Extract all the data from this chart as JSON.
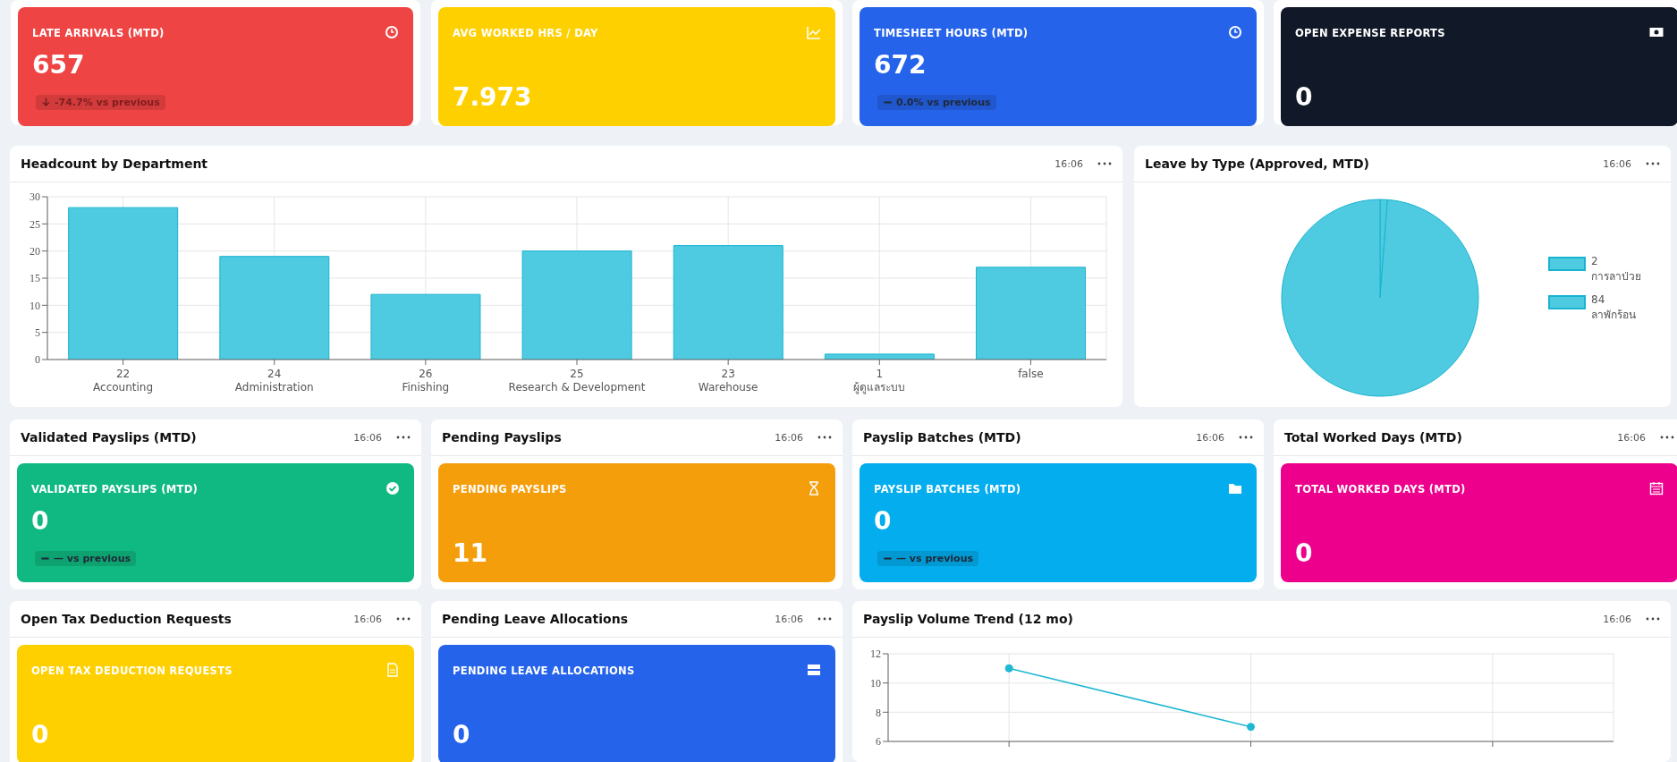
{
  "chart_data": [
    {
      "type": "other",
      "title": "LATE ARRIVALS (MTD)",
      "annotations": [
        "657",
        "-74.7% vs previous"
      ],
      "color": "#ef4444"
    },
    {
      "type": "other",
      "title": "AVG WORKED HRS / DAY",
      "annotations": [
        "7.973"
      ],
      "color": "#ffd000"
    },
    {
      "type": "other",
      "title": "TIMESHEET HOURS (MTD)",
      "annotations": [
        "672",
        "0.0% vs previous"
      ],
      "color": "#2563eb"
    },
    {
      "type": "other",
      "title": "OPEN EXPENSE REPORTS",
      "annotations": [
        "0"
      ],
      "color": "#111827"
    },
    {
      "type": "bar",
      "title": "Headcount by Department",
      "annotations": [
        "16:06"
      ],
      "categories": [
        "22\nAccounting",
        "24\nAdministration",
        "26\nFinishing",
        "25\nResearch & Development",
        "23\nWarehouse",
        "1\nผู้ดูแลระบบ",
        "false"
      ],
      "values": [
        28,
        19,
        12,
        20,
        21,
        1,
        17
      ],
      "color": "#4fcbe1",
      "ylim": [
        0,
        30
      ],
      "yticks": [
        0,
        5,
        10,
        15,
        20,
        25,
        30
      ],
      "grid": true
    },
    {
      "type": "pie",
      "title": "Leave by Type (Approved, MTD)",
      "annotations": [
        "16:06"
      ],
      "categories": [
        "2\nการลาป่วย",
        "84\nลาพักร้อน"
      ],
      "values": [
        1.2,
        98.8
      ],
      "colors": [
        "#4fcbe1",
        "#4fcbe1"
      ],
      "legend": "right"
    },
    {
      "type": "other",
      "title": "Validated Payslips (MTD)",
      "subtitle": "VALIDATED PAYSLIPS (MTD)",
      "annotations": [
        "16:06",
        "0",
        "— vs previous"
      ],
      "color": "#10b981"
    },
    {
      "type": "other",
      "title": "Pending Payslips",
      "subtitle": "PENDING PAYSLIPS",
      "annotations": [
        "16:06",
        "11"
      ],
      "color": "#f59e0b"
    },
    {
      "type": "other",
      "title": "Payslip Batches (MTD)",
      "subtitle": "PAYSLIP BATCHES (MTD)",
      "annotations": [
        "16:06",
        "0",
        "— vs previous"
      ],
      "color": "#03adee"
    },
    {
      "type": "other",
      "title": "Total Worked Days (MTD)",
      "subtitle": "TOTAL WORKED DAYS (MTD)",
      "annotations": [
        "16:06",
        "0"
      ],
      "color": "#ec008c"
    },
    {
      "type": "other",
      "title": "Open Tax Deduction Requests",
      "subtitle": "OPEN TAX DEDUCTION REQUESTS",
      "annotations": [
        "16:06",
        "0"
      ],
      "color": "#ffd000"
    },
    {
      "type": "other",
      "title": "Pending Leave Allocations",
      "subtitle": "PENDING LEAVE ALLOCATIONS",
      "annotations": [
        "16:06",
        "0"
      ],
      "color": "#2563eb"
    },
    {
      "type": "line",
      "title": "Payslip Volume Trend (12 mo)",
      "annotations": [
        "16:06"
      ],
      "categories": [
        null,
        null,
        null
      ],
      "values": [
        11,
        7,
        null
      ],
      "color": "#1fb8d3",
      "ylim": [
        6,
        12
      ],
      "yticks": [
        6,
        8,
        10,
        12
      ],
      "grid": true,
      "marker": "circle"
    }
  ]
}
